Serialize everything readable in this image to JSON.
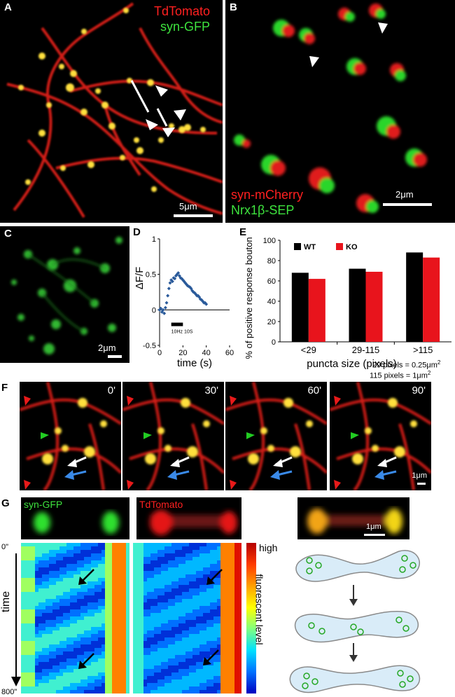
{
  "panelA": {
    "label": "A",
    "ch1": "TdTomato",
    "ch2": "syn-GFP",
    "scale": "5μm"
  },
  "panelB": {
    "label": "B",
    "ch1": "syn-mCherry",
    "ch2": "Nrx1β-SEP",
    "scale": "2μm"
  },
  "panelC": {
    "label": "C",
    "scale": "2μm"
  },
  "panelD": {
    "label": "D",
    "ylabel": "ΔF/F",
    "xlabel": "time (s)",
    "stim_label": "10Hz 10S",
    "yticks": [
      "1",
      "0.5",
      "0",
      "-0.5"
    ],
    "xticks": [
      "0",
      "20",
      "40",
      "60"
    ]
  },
  "panelE": {
    "label": "E",
    "ylabel": "% of positive response bouton",
    "xlabel": "puncta size (pixels)",
    "yticks": [
      "100",
      "80",
      "60",
      "40",
      "20",
      "0"
    ],
    "legend": [
      "WT",
      "KO"
    ],
    "note1": "29 pixels = 0.25μm",
    "note2": "115 pixels = 1μm"
  },
  "panelF": {
    "label": "F",
    "times": [
      "0'",
      "30'",
      "60'",
      "90'"
    ],
    "scale": "1μm"
  },
  "panelG": {
    "label": "G",
    "ch1": "syn-GFP",
    "ch2": "TdTomato",
    "scale": "1μm",
    "time_label": "time",
    "t_start": "0\"",
    "t_end": "800\"",
    "cbar_high": "high",
    "cbar_label": "fluorescent level"
  },
  "chart_data": [
    {
      "type": "scatter",
      "title": "",
      "xlabel": "time (s)",
      "ylabel": "ΔF/F",
      "xlim": [
        0,
        60
      ],
      "ylim": [
        -0.5,
        1
      ],
      "x": [
        0,
        1,
        2,
        3,
        4,
        5,
        6,
        7,
        8,
        9,
        10,
        11,
        12,
        13,
        14,
        15,
        16,
        17,
        18,
        19,
        20,
        21,
        22,
        23,
        24,
        25,
        26,
        27,
        28,
        29,
        30,
        31,
        32,
        33,
        34,
        35,
        36,
        37,
        38,
        39,
        40
      ],
      "y": [
        0.0,
        0.02,
        -0.03,
        0.0,
        -0.05,
        0.03,
        0.1,
        0.2,
        0.3,
        0.38,
        0.42,
        0.4,
        0.45,
        0.44,
        0.48,
        0.5,
        0.52,
        0.48,
        0.45,
        0.44,
        0.42,
        0.4,
        0.38,
        0.36,
        0.34,
        0.33,
        0.32,
        0.3,
        0.27,
        0.25,
        0.24,
        0.22,
        0.2,
        0.2,
        0.18,
        0.15,
        0.14,
        0.12,
        0.1,
        0.1,
        0.08
      ]
    },
    {
      "type": "bar",
      "title": "",
      "categories": [
        "<29",
        "29-115",
        ">115"
      ],
      "series": [
        {
          "name": "WT",
          "values": [
            68,
            72,
            88
          ],
          "color": "#000000"
        },
        {
          "name": "KO",
          "values": [
            62,
            69,
            83
          ],
          "color": "#e8141c"
        }
      ],
      "xlabel": "puncta size (pixels)",
      "ylabel": "% of positive response bouton",
      "ylim": [
        0,
        100
      ]
    }
  ]
}
